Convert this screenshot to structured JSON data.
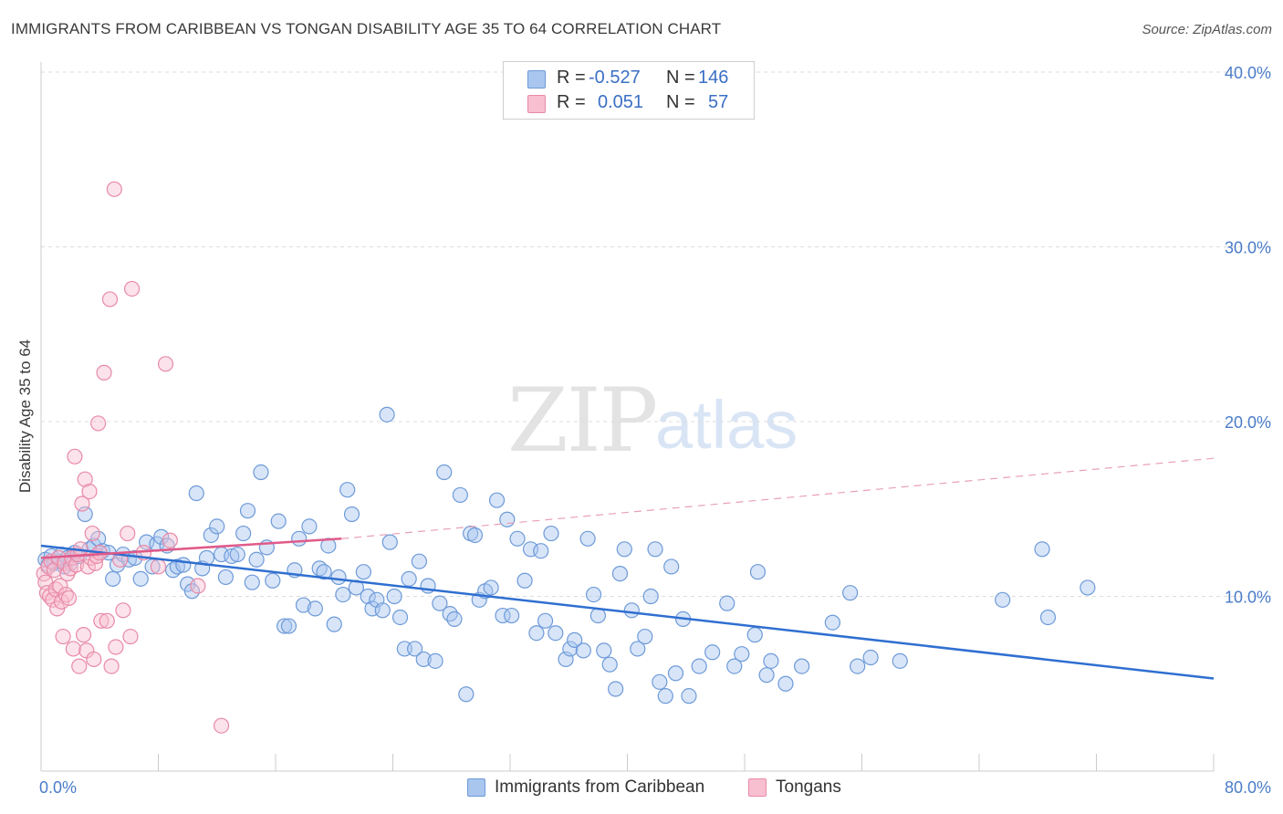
{
  "title": "IMMIGRANTS FROM CARIBBEAN VS TONGAN DISABILITY AGE 35 TO 64 CORRELATION CHART",
  "source": "Source: ZipAtlas.com",
  "watermark": {
    "zip": "ZIP",
    "atlas": "atlas"
  },
  "legend": {
    "rows": [
      {
        "r_label": "R =",
        "r_value": "-0.527",
        "n_label": "N =",
        "n_value": "146",
        "color": "#a9c6ef",
        "border": "#6d9ad8"
      },
      {
        "r_label": "R =",
        "r_value": "0.051",
        "n_label": "N =",
        "n_value": "57",
        "color": "#f8bfd0",
        "border": "#e88aa8"
      }
    ]
  },
  "bottom_legend": [
    {
      "label": "Immigrants from Caribbean",
      "color": "#a9c6ef",
      "border": "#6d9ad8"
    },
    {
      "label": "Tongans",
      "color": "#f8bfd0",
      "border": "#e88aa8"
    }
  ],
  "chart_data": {
    "type": "scatter",
    "title": "IMMIGRANTS FROM CARIBBEAN VS TONGAN DISABILITY AGE 35 TO 64 CORRELATION CHART",
    "xlabel": "",
    "ylabel": "Disability Age 35 to 64",
    "xlim": [
      0,
      80
    ],
    "ylim": [
      0,
      40
    ],
    "x_tick_labels": [
      "0.0%",
      "80.0%"
    ],
    "y_ticks": [
      10,
      20,
      30,
      40
    ],
    "y_tick_labels": [
      "10.0%",
      "20.0%",
      "30.0%",
      "40.0%"
    ],
    "grid": "horizontal dashed",
    "legend_position": "top-center",
    "series": [
      {
        "name": "Immigrants from Caribbean",
        "color": "#6d9ad8",
        "fill": "rgba(169,198,239,0.45)",
        "trend": {
          "x": [
            0,
            80
          ],
          "y": [
            12.9,
            5.3
          ],
          "color": "#2f6fd0"
        },
        "points": [
          [
            0.3,
            12.1
          ],
          [
            0.5,
            11.8
          ],
          [
            0.7,
            12.3
          ],
          [
            0.9,
            11.9
          ],
          [
            1.2,
            12.0
          ],
          [
            1.4,
            12.4
          ],
          [
            1.6,
            11.7
          ],
          [
            1.8,
            12.2
          ],
          [
            2.0,
            11.9
          ],
          [
            2.3,
            12.5
          ],
          [
            2.6,
            12.3
          ],
          [
            3.0,
            14.7
          ],
          [
            3.3,
            12.7
          ],
          [
            3.6,
            12.9
          ],
          [
            3.9,
            13.3
          ],
          [
            4.2,
            12.6
          ],
          [
            4.6,
            12.5
          ],
          [
            4.9,
            11.0
          ],
          [
            5.2,
            11.8
          ],
          [
            5.6,
            12.4
          ],
          [
            6.0,
            12.1
          ],
          [
            6.4,
            12.2
          ],
          [
            6.8,
            11.0
          ],
          [
            7.2,
            13.1
          ],
          [
            7.6,
            11.7
          ],
          [
            7.9,
            13.0
          ],
          [
            8.2,
            13.4
          ],
          [
            8.6,
            12.9
          ],
          [
            9.0,
            11.5
          ],
          [
            9.3,
            11.7
          ],
          [
            9.7,
            11.8
          ],
          [
            10.0,
            10.7
          ],
          [
            10.3,
            10.3
          ],
          [
            10.6,
            15.9
          ],
          [
            11.0,
            11.6
          ],
          [
            11.3,
            12.2
          ],
          [
            11.6,
            13.5
          ],
          [
            12.0,
            14.0
          ],
          [
            12.3,
            12.4
          ],
          [
            12.6,
            11.1
          ],
          [
            13.0,
            12.3
          ],
          [
            13.4,
            12.4
          ],
          [
            13.8,
            13.6
          ],
          [
            14.1,
            14.9
          ],
          [
            14.4,
            10.8
          ],
          [
            14.7,
            12.1
          ],
          [
            15.0,
            17.1
          ],
          [
            15.4,
            12.8
          ],
          [
            15.8,
            10.9
          ],
          [
            16.2,
            14.3
          ],
          [
            16.6,
            8.3
          ],
          [
            16.9,
            8.3
          ],
          [
            17.3,
            11.5
          ],
          [
            17.6,
            13.3
          ],
          [
            17.9,
            9.5
          ],
          [
            18.3,
            14.0
          ],
          [
            18.7,
            9.3
          ],
          [
            19.0,
            11.6
          ],
          [
            19.3,
            11.4
          ],
          [
            19.6,
            12.9
          ],
          [
            20.0,
            8.4
          ],
          [
            20.3,
            11.1
          ],
          [
            20.6,
            10.1
          ],
          [
            20.9,
            16.1
          ],
          [
            21.2,
            14.7
          ],
          [
            21.5,
            10.5
          ],
          [
            22.0,
            11.4
          ],
          [
            22.3,
            10.0
          ],
          [
            22.6,
            9.3
          ],
          [
            22.9,
            9.8
          ],
          [
            23.3,
            9.2
          ],
          [
            23.6,
            20.4
          ],
          [
            23.8,
            13.1
          ],
          [
            24.1,
            10.0
          ],
          [
            24.5,
            8.8
          ],
          [
            24.8,
            7.0
          ],
          [
            25.1,
            11.0
          ],
          [
            25.5,
            7.0
          ],
          [
            25.8,
            12.0
          ],
          [
            26.1,
            6.4
          ],
          [
            26.4,
            10.6
          ],
          [
            26.9,
            6.3
          ],
          [
            27.2,
            9.6
          ],
          [
            27.5,
            17.1
          ],
          [
            27.9,
            9.0
          ],
          [
            28.2,
            8.7
          ],
          [
            28.6,
            15.8
          ],
          [
            29.0,
            4.4
          ],
          [
            29.3,
            13.6
          ],
          [
            29.6,
            13.5
          ],
          [
            29.9,
            9.8
          ],
          [
            30.3,
            10.3
          ],
          [
            30.7,
            10.5
          ],
          [
            31.1,
            15.5
          ],
          [
            31.5,
            8.9
          ],
          [
            31.8,
            14.4
          ],
          [
            32.1,
            8.9
          ],
          [
            32.5,
            13.3
          ],
          [
            33.0,
            10.9
          ],
          [
            33.4,
            12.7
          ],
          [
            33.8,
            7.9
          ],
          [
            34.1,
            12.6
          ],
          [
            34.4,
            8.6
          ],
          [
            34.8,
            13.6
          ],
          [
            35.1,
            7.9
          ],
          [
            35.8,
            6.4
          ],
          [
            36.1,
            7.0
          ],
          [
            36.4,
            7.5
          ],
          [
            37.0,
            6.9
          ],
          [
            37.3,
            13.3
          ],
          [
            37.7,
            10.1
          ],
          [
            38.0,
            8.9
          ],
          [
            38.4,
            6.9
          ],
          [
            38.8,
            6.1
          ],
          [
            39.2,
            4.7
          ],
          [
            39.5,
            11.3
          ],
          [
            39.8,
            12.7
          ],
          [
            40.3,
            9.2
          ],
          [
            40.7,
            7.0
          ],
          [
            41.2,
            7.7
          ],
          [
            41.6,
            10.0
          ],
          [
            41.9,
            12.7
          ],
          [
            42.2,
            5.1
          ],
          [
            42.6,
            4.3
          ],
          [
            43.0,
            11.7
          ],
          [
            43.3,
            5.6
          ],
          [
            43.8,
            8.7
          ],
          [
            44.2,
            4.3
          ],
          [
            44.9,
            6.0
          ],
          [
            45.8,
            6.8
          ],
          [
            46.8,
            9.6
          ],
          [
            47.3,
            6.0
          ],
          [
            47.8,
            6.7
          ],
          [
            48.7,
            7.8
          ],
          [
            48.9,
            11.4
          ],
          [
            49.5,
            5.5
          ],
          [
            49.8,
            6.3
          ],
          [
            50.8,
            5.0
          ],
          [
            51.9,
            6.0
          ],
          [
            54.0,
            8.5
          ],
          [
            55.2,
            10.2
          ],
          [
            55.7,
            6.0
          ],
          [
            56.6,
            6.5
          ],
          [
            58.6,
            6.3
          ],
          [
            65.6,
            9.8
          ],
          [
            68.3,
            12.7
          ],
          [
            68.7,
            8.8
          ],
          [
            71.4,
            10.5
          ]
        ]
      },
      {
        "name": "Tongans",
        "color": "#e88aa8",
        "fill": "rgba(248,191,208,0.45)",
        "trend": {
          "x": [
            0,
            20.5
          ],
          "y": [
            12.2,
            13.3
          ],
          "color": "#e05a8a",
          "dashed_extension": {
            "x": [
              20.5,
              80
            ],
            "y": [
              13.3,
              17.9
            ]
          }
        },
        "points": [
          [
            0.2,
            11.3
          ],
          [
            0.3,
            10.8
          ],
          [
            0.4,
            10.2
          ],
          [
            0.5,
            11.7
          ],
          [
            0.6,
            10.0
          ],
          [
            0.7,
            12.0
          ],
          [
            0.8,
            9.8
          ],
          [
            0.9,
            11.5
          ],
          [
            1.0,
            10.4
          ],
          [
            1.1,
            9.3
          ],
          [
            1.2,
            12.2
          ],
          [
            1.3,
            10.6
          ],
          [
            1.4,
            9.7
          ],
          [
            1.5,
            7.7
          ],
          [
            1.6,
            11.9
          ],
          [
            1.7,
            10.1
          ],
          [
            1.8,
            11.3
          ],
          [
            1.9,
            9.9
          ],
          [
            2.0,
            11.6
          ],
          [
            2.1,
            12.2
          ],
          [
            2.2,
            7.0
          ],
          [
            2.3,
            18.0
          ],
          [
            2.4,
            11.8
          ],
          [
            2.5,
            12.4
          ],
          [
            2.6,
            6.0
          ],
          [
            2.7,
            12.7
          ],
          [
            2.8,
            15.3
          ],
          [
            2.9,
            7.8
          ],
          [
            3.0,
            16.7
          ],
          [
            3.1,
            6.9
          ],
          [
            3.2,
            11.7
          ],
          [
            3.3,
            16.0
          ],
          [
            3.4,
            12.2
          ],
          [
            3.5,
            13.6
          ],
          [
            3.6,
            6.4
          ],
          [
            3.7,
            11.9
          ],
          [
            3.8,
            12.3
          ],
          [
            3.9,
            19.9
          ],
          [
            4.0,
            12.5
          ],
          [
            4.1,
            8.6
          ],
          [
            4.3,
            22.8
          ],
          [
            4.5,
            8.6
          ],
          [
            4.7,
            27.0
          ],
          [
            4.8,
            6.0
          ],
          [
            5.0,
            33.3
          ],
          [
            5.1,
            7.1
          ],
          [
            5.4,
            12.1
          ],
          [
            5.6,
            9.2
          ],
          [
            5.9,
            13.6
          ],
          [
            6.1,
            7.7
          ],
          [
            6.2,
            27.6
          ],
          [
            7.0,
            12.5
          ],
          [
            8.0,
            11.7
          ],
          [
            8.5,
            23.3
          ],
          [
            8.8,
            13.2
          ],
          [
            10.7,
            10.6
          ],
          [
            12.3,
            2.6
          ]
        ]
      }
    ]
  }
}
